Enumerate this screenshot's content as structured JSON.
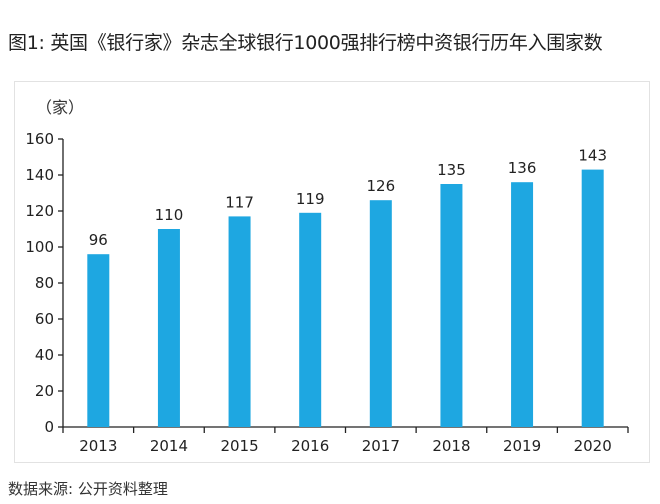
{
  "title": "图1: 英国《银行家》杂志全球银行1000强排行榜中资银行历年入围家数",
  "source": "数据来源: 公开资料整理",
  "chart_data": {
    "type": "bar",
    "title": "图1: 英国《银行家》杂志全球银行1000强排行榜中资银行历年入围家数",
    "ylabel": "（家）",
    "xlabel": "",
    "categories": [
      "2013",
      "2014",
      "2015",
      "2016",
      "2017",
      "2018",
      "2019",
      "2020"
    ],
    "values": [
      96,
      110,
      117,
      119,
      126,
      135,
      136,
      143
    ],
    "ylim": [
      0,
      160
    ],
    "yticks": [
      0,
      20,
      40,
      60,
      80,
      100,
      120,
      140,
      160
    ],
    "grid": false,
    "data_labels": true,
    "colors": {
      "bar": "#1ea7e1",
      "axis": "#222222"
    }
  }
}
